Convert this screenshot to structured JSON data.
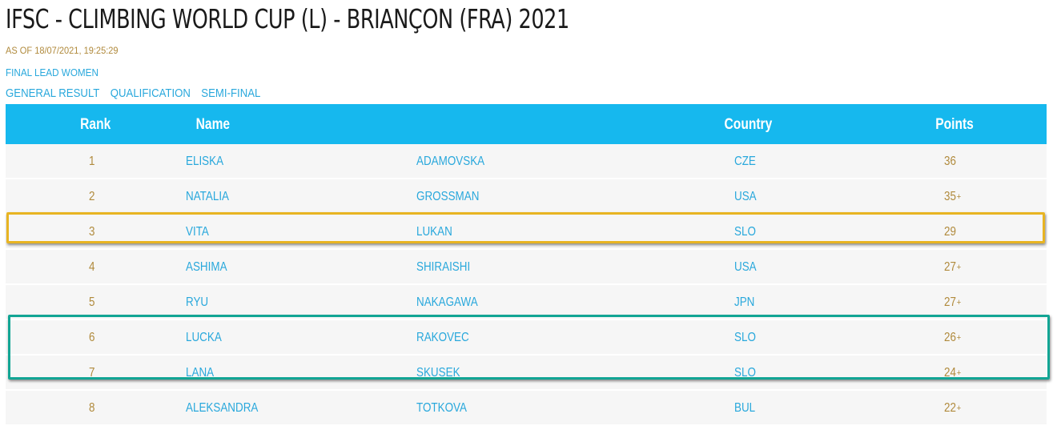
{
  "page": {
    "title": "IFSC - CLIMBING WORLD CUP (L) - BRIANÇON (FRA) 2021",
    "as_of": "AS OF 18/07/2021, 19:25:29",
    "event": "FINAL LEAD WOMEN"
  },
  "nav": {
    "links": [
      "GENERAL RESULT",
      "QUALIFICATION",
      "SEMI-FINAL"
    ]
  },
  "table": {
    "headers": {
      "rank": "Rank",
      "name": "Name",
      "country": "Country",
      "points": "Points"
    },
    "rows": [
      {
        "rank": "1",
        "first": "ELISKA",
        "last": "ADAMOVSKA",
        "country": "CZE",
        "points": "36",
        "plus": ""
      },
      {
        "rank": "2",
        "first": "NATALIA",
        "last": "GROSSMAN",
        "country": "USA",
        "points": "35",
        "plus": "+"
      },
      {
        "rank": "3",
        "first": "VITA",
        "last": "LUKAN",
        "country": "SLO",
        "points": "29",
        "plus": ""
      },
      {
        "rank": "4",
        "first": "ASHIMA",
        "last": "SHIRAISHI",
        "country": "USA",
        "points": "27",
        "plus": "+"
      },
      {
        "rank": "5",
        "first": "RYU",
        "last": "NAKAGAWA",
        "country": "JPN",
        "points": "27",
        "plus": "+"
      },
      {
        "rank": "6",
        "first": "LUCKA",
        "last": "RAKOVEC",
        "country": "SLO",
        "points": "26",
        "plus": "+"
      },
      {
        "rank": "7",
        "first": "LANA",
        "last": "SKUSEK",
        "country": "SLO",
        "points": "24",
        "plus": "+"
      },
      {
        "rank": "8",
        "first": "ALEKSANDRA",
        "last": "TOTKOVA",
        "country": "BUL",
        "points": "22",
        "plus": "+"
      }
    ]
  },
  "highlights": {
    "gold_color": "#e8b422",
    "teal_color": "#12a594"
  }
}
